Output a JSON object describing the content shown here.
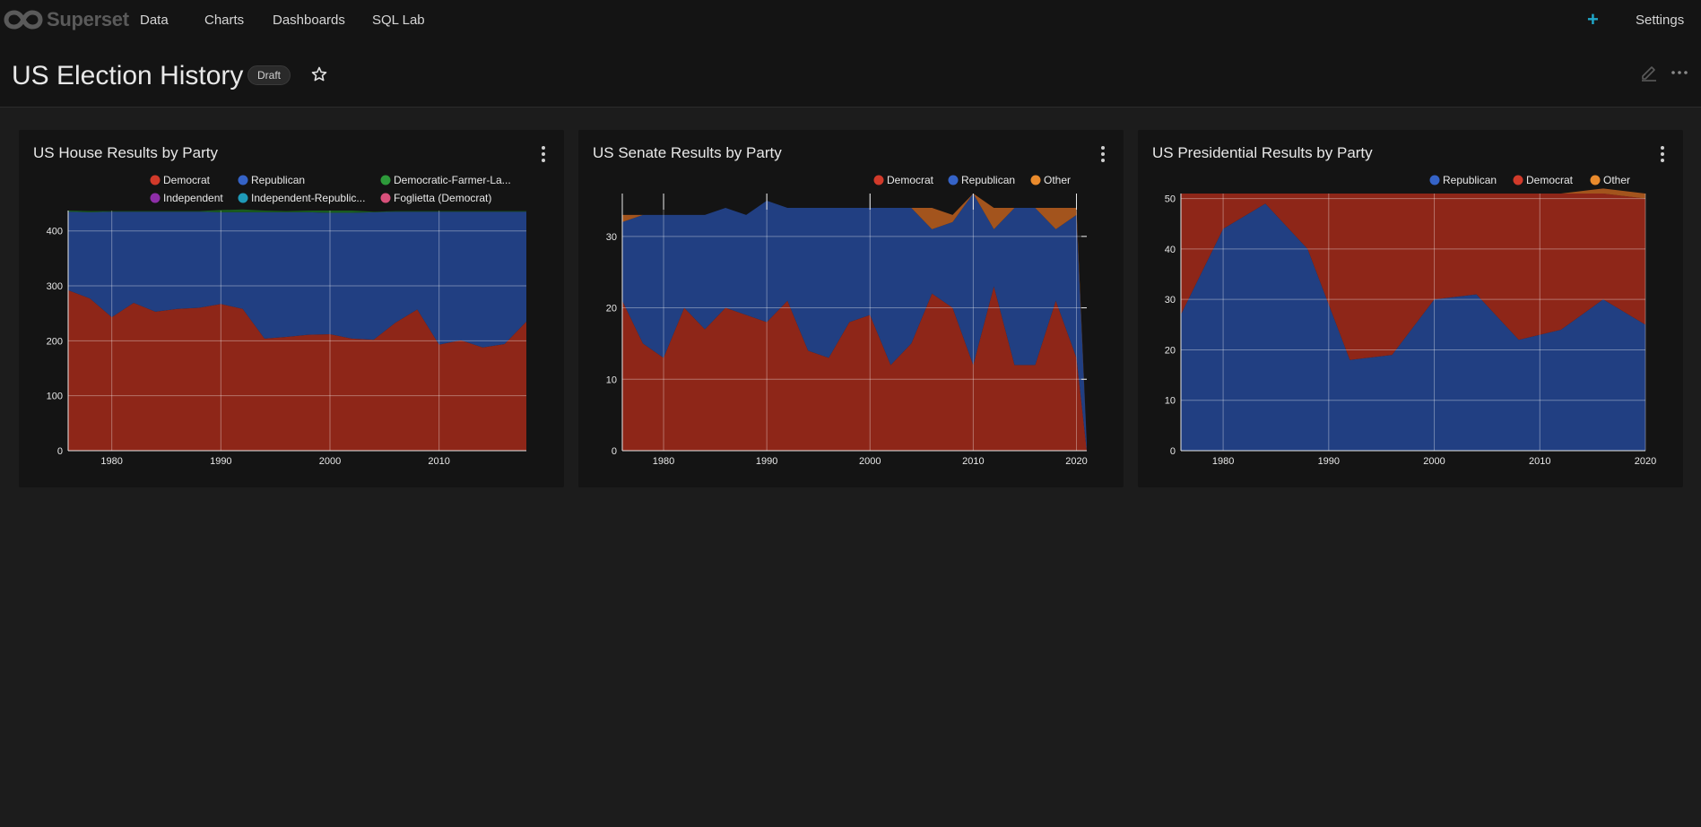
{
  "app": {
    "brand": "Superset"
  },
  "nav": {
    "items": [
      "Data",
      "Charts",
      "Dashboards",
      "SQL Lab"
    ],
    "plus": "+",
    "settings": "Settings"
  },
  "dashboard": {
    "title": "US Election History",
    "status": "Draft"
  },
  "colors": {
    "democrat": "#8e2618",
    "republican": "#213f82",
    "other": "#a3541d",
    "green": "#1a5c1f"
  },
  "cards": [
    {
      "title": "US House Results by Party"
    },
    {
      "title": "US Senate Results by Party"
    },
    {
      "title": "US Presidential Results by Party"
    }
  ],
  "chart_data": [
    {
      "type": "area",
      "title": "US House Results by Party",
      "stacked": true,
      "legend": [
        {
          "name": "Democrat",
          "color": "#d13a2a"
        },
        {
          "name": "Republican",
          "color": "#3563c7"
        },
        {
          "name": "Democratic-Farmer-La...",
          "color": "#2d9a3a"
        },
        {
          "name": "Independent",
          "color": "#8e2ea8"
        },
        {
          "name": "Independent-Republic...",
          "color": "#1f9ab8"
        },
        {
          "name": "Foglietta (Democrat)",
          "color": "#d8507a"
        }
      ],
      "x": [
        1976,
        1978,
        1980,
        1982,
        1984,
        1986,
        1988,
        1990,
        1992,
        1994,
        1996,
        1998,
        2000,
        2002,
        2004,
        2006,
        2008,
        2010,
        2012,
        2014,
        2016,
        2018
      ],
      "series": [
        {
          "name": "Democrat",
          "values": [
            292,
            277,
            243,
            269,
            253,
            258,
            260,
            267,
            258,
            204,
            207,
            211,
            212,
            204,
            202,
            233,
            257,
            193,
            201,
            188,
            194,
            235
          ]
        },
        {
          "name": "Republican",
          "values": [
            143,
            157,
            192,
            166,
            182,
            177,
            175,
            167,
            176,
            230,
            227,
            223,
            221,
            229,
            232,
            202,
            178,
            242,
            234,
            247,
            241,
            200
          ]
        },
        {
          "name": "Democratic-Farmer-La...",
          "values": [
            2,
            2,
            1,
            1,
            1,
            1,
            1,
            4,
            5,
            3,
            2,
            3,
            4,
            4,
            1,
            1,
            1,
            1,
            1,
            1,
            1,
            1
          ]
        }
      ],
      "xticks": [
        1980,
        1990,
        2000,
        2010
      ],
      "yticks": [
        0,
        100,
        200,
        300,
        400
      ],
      "ylim": [
        0,
        437
      ]
    },
    {
      "type": "area",
      "title": "US Senate Results by Party",
      "stacked": true,
      "legend": [
        {
          "name": "Democrat",
          "color": "#d13a2a"
        },
        {
          "name": "Republican",
          "color": "#3563c7"
        },
        {
          "name": "Other",
          "color": "#e98a2c"
        }
      ],
      "x": [
        1976,
        1978,
        1980,
        1982,
        1984,
        1986,
        1988,
        1990,
        1992,
        1994,
        1996,
        1998,
        2000,
        2002,
        2004,
        2006,
        2008,
        2010,
        2012,
        2014,
        2016,
        2018,
        2020,
        2021
      ],
      "series": [
        {
          "name": "Democrat",
          "values": [
            21,
            15,
            13,
            20,
            17,
            20,
            19,
            18,
            21,
            14,
            13,
            18,
            19,
            12,
            15,
            22,
            20,
            12,
            23,
            12,
            12,
            21,
            13,
            0
          ]
        },
        {
          "name": "Republican",
          "values": [
            11,
            18,
            20,
            13,
            16,
            14,
            14,
            17,
            13,
            20,
            21,
            16,
            15,
            22,
            19,
            9,
            12,
            24,
            8,
            22,
            22,
            10,
            20,
            1
          ]
        },
        {
          "name": "Other",
          "values": [
            1,
            0,
            0,
            0,
            0,
            0,
            0,
            0,
            0,
            0,
            0,
            0,
            0,
            0,
            0,
            3,
            1,
            0,
            3,
            0,
            0,
            3,
            1,
            0
          ]
        }
      ],
      "xticks": [
        1980,
        1990,
        2000,
        2010,
        2020
      ],
      "yticks": [
        0,
        10,
        20,
        30
      ],
      "ylim": [
        0,
        36
      ]
    },
    {
      "type": "area",
      "title": "US Presidential Results by Party",
      "stacked": true,
      "legend": [
        {
          "name": "Republican",
          "color": "#3563c7"
        },
        {
          "name": "Democrat",
          "color": "#d13a2a"
        },
        {
          "name": "Other",
          "color": "#e98a2c"
        }
      ],
      "x": [
        1976,
        1980,
        1984,
        1988,
        1992,
        1996,
        2000,
        2004,
        2008,
        2012,
        2016,
        2020
      ],
      "series": [
        {
          "name": "Republican",
          "values": [
            27,
            44,
            49,
            40,
            18,
            19,
            30,
            31,
            22,
            24,
            30,
            25
          ]
        },
        {
          "name": "Democrat",
          "values": [
            24,
            7,
            2,
            11,
            33,
            32,
            21,
            20,
            29,
            27,
            21,
            25
          ]
        },
        {
          "name": "Other",
          "values": [
            0,
            0,
            0,
            0,
            0,
            0,
            0,
            0,
            0,
            0,
            1,
            1
          ]
        }
      ],
      "xticks": [
        1980,
        1990,
        2000,
        2010,
        2020
      ],
      "yticks": [
        0,
        10,
        20,
        30,
        40,
        50
      ],
      "ylim": [
        0,
        51
      ]
    }
  ]
}
